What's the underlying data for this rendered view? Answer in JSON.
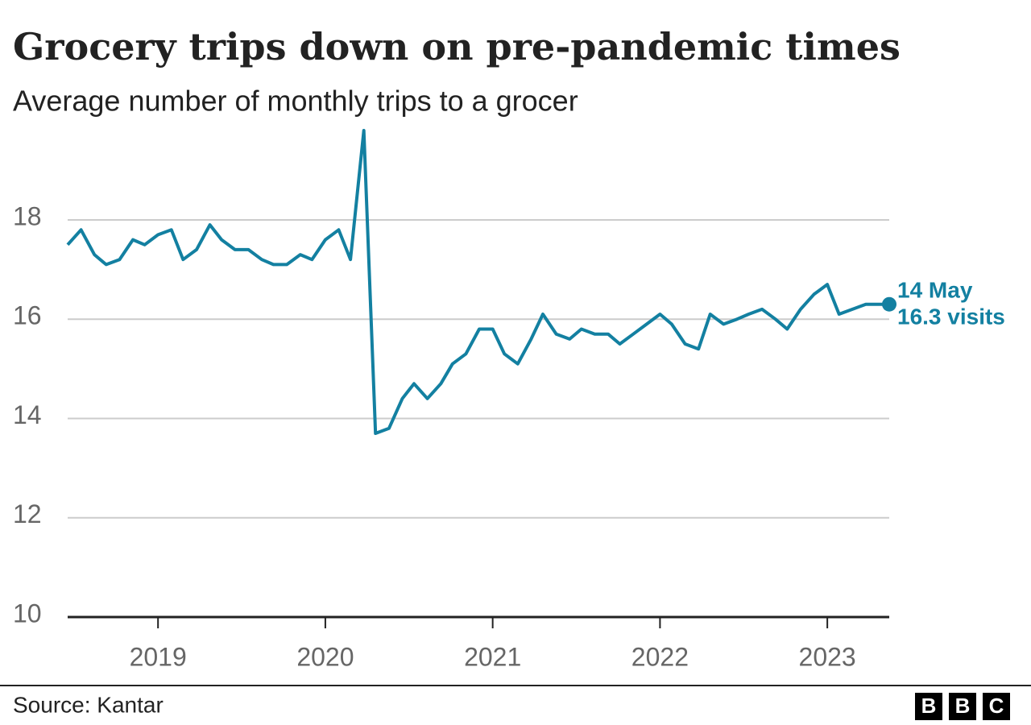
{
  "chart_data": {
    "type": "line",
    "title": "Grocery trips down on pre-pandemic times",
    "subtitle": "Average number of monthly trips to a grocer",
    "x": [
      2018.46,
      2018.54,
      2018.62,
      2018.69,
      2018.77,
      2018.85,
      2018.92,
      2019.0,
      2019.08,
      2019.15,
      2019.23,
      2019.31,
      2019.38,
      2019.46,
      2019.54,
      2019.62,
      2019.69,
      2019.77,
      2019.85,
      2019.92,
      2020.0,
      2020.08,
      2020.15,
      2020.23,
      2020.3,
      2020.38,
      2020.46,
      2020.53,
      2020.61,
      2020.69,
      2020.76,
      2020.84,
      2020.92,
      2021.0,
      2021.07,
      2021.15,
      2021.23,
      2021.3,
      2021.38,
      2021.46,
      2021.53,
      2021.61,
      2021.69,
      2021.76,
      2021.84,
      2021.92,
      2022.0,
      2022.07,
      2022.15,
      2022.23,
      2022.3,
      2022.38,
      2022.46,
      2022.53,
      2022.61,
      2022.69,
      2022.76,
      2022.84,
      2022.92,
      2023.0,
      2023.07,
      2023.15,
      2023.23,
      2023.3,
      2023.37
    ],
    "series": [
      {
        "name": "Monthly trips",
        "color": "#1380a1",
        "values": [
          17.5,
          17.8,
          17.3,
          17.1,
          17.2,
          17.6,
          17.5,
          17.7,
          17.8,
          17.2,
          17.4,
          17.9,
          17.6,
          17.4,
          17.4,
          17.2,
          17.1,
          17.1,
          17.3,
          17.2,
          17.6,
          17.8,
          17.2,
          19.8,
          13.7,
          13.8,
          14.4,
          14.7,
          14.4,
          14.7,
          15.1,
          15.3,
          15.8,
          15.8,
          15.3,
          15.1,
          15.6,
          16.1,
          15.7,
          15.6,
          15.8,
          15.7,
          15.7,
          15.5,
          15.7,
          15.9,
          16.1,
          15.9,
          15.5,
          15.4,
          16.1,
          15.9,
          16.0,
          16.1,
          16.2,
          16.0,
          15.8,
          16.2,
          16.5,
          16.7,
          16.1,
          16.2,
          16.3,
          16.3,
          16.3
        ]
      }
    ],
    "xlim": [
      2018.46,
      2023.37
    ],
    "xticks": [
      2019,
      2020,
      2021,
      2022,
      2023
    ],
    "ylim": [
      10,
      19.8
    ],
    "yticks": [
      10,
      12,
      14,
      16,
      18
    ],
    "grid": true,
    "annotation": [
      "14 May",
      "16.3 visits"
    ],
    "source": "Source: Kantar",
    "logo": [
      "B",
      "B",
      "C"
    ]
  }
}
